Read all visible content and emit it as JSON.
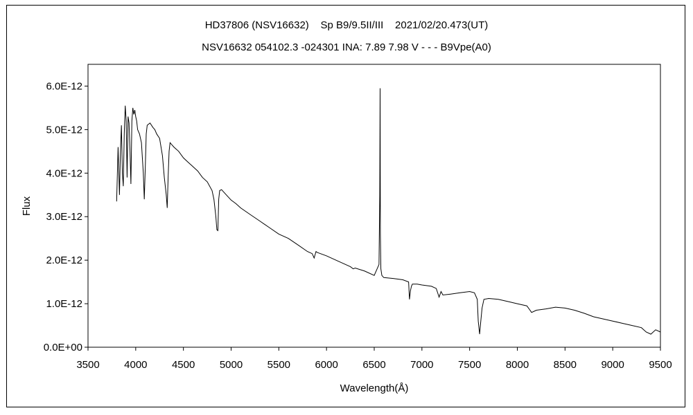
{
  "chart_data": {
    "type": "line",
    "title_line1": "HD37806 (NSV16632)    Sp B9/9.5II/III    2021/02/20.473(UT)",
    "title_line2": "NSV16632 054102.3 -024301 INA: 7.89 7.98 V - - - B9Vpe(A0)",
    "xlabel": "Wavelength(Å)",
    "ylabel": "Flux",
    "xlim": [
      3500,
      9500
    ],
    "ylim": [
      0,
      6.5e-12
    ],
    "xticks": [
      3500,
      4000,
      4500,
      5000,
      5500,
      6000,
      6500,
      7000,
      7500,
      8000,
      8500,
      9000,
      9500
    ],
    "xtick_labels": [
      "3500",
      "4000",
      "4500",
      "5000",
      "5500",
      "6000",
      "6500",
      "7000",
      "7500",
      "8000",
      "8500",
      "9000",
      "9500"
    ],
    "yticks": [
      0,
      1e-12,
      2e-12,
      3e-12,
      4e-12,
      5e-12,
      6e-12
    ],
    "ytick_labels": [
      "0.0E+00",
      "1.0E-12",
      "2.0E-12",
      "3.0E-12",
      "4.0E-12",
      "5.0E-12",
      "6.0E-12"
    ],
    "grid": false,
    "legend": "none",
    "series": [
      {
        "color": "#000000",
        "x": [
          3800,
          3815,
          3830,
          3840,
          3850,
          3860,
          3870,
          3880,
          3890,
          3900,
          3910,
          3920,
          3930,
          3940,
          3950,
          3960,
          3970,
          3980,
          3990,
          4000,
          4010,
          4020,
          4040,
          4060,
          4080,
          4090,
          4100,
          4110,
          4120,
          4150,
          4180,
          4200,
          4220,
          4250,
          4280,
          4300,
          4320,
          4330,
          4340,
          4350,
          4360,
          4380,
          4400,
          4450,
          4500,
          4550,
          4600,
          4650,
          4700,
          4750,
          4800,
          4820,
          4840,
          4850,
          4861,
          4870,
          4880,
          4900,
          4950,
          5000,
          5050,
          5100,
          5200,
          5300,
          5400,
          5500,
          5600,
          5700,
          5800,
          5850,
          5870,
          5890,
          5900,
          6000,
          6100,
          6200,
          6250,
          6280,
          6300,
          6400,
          6500,
          6550,
          6558,
          6562,
          6565,
          6570,
          6580,
          6600,
          6700,
          6800,
          6860,
          6870,
          6880,
          6890,
          6900,
          6950,
          7000,
          7100,
          7150,
          7180,
          7200,
          7220,
          7300,
          7400,
          7500,
          7550,
          7580,
          7590,
          7605,
          7615,
          7630,
          7650,
          7700,
          7800,
          7900,
          8000,
          8100,
          8150,
          8200,
          8300,
          8400,
          8500,
          8600,
          8700,
          8800,
          8900,
          9000,
          9100,
          9200,
          9300,
          9350,
          9400,
          9450,
          9500
        ],
        "y": [
          3.35e-12,
          4.6e-12,
          3.5e-12,
          4.5e-12,
          5.1e-12,
          4e-12,
          3.7e-12,
          4.9e-12,
          5.55e-12,
          5.2e-12,
          3.9e-12,
          5.3e-12,
          5.15e-12,
          4.5e-12,
          3.75e-12,
          5.2e-12,
          5.5e-12,
          5.35e-12,
          5.45e-12,
          5.3e-12,
          5.2e-12,
          5e-12,
          4.9e-12,
          4.7e-12,
          4e-12,
          3.4e-12,
          4.1e-12,
          4.9e-12,
          5.1e-12,
          5.15e-12,
          5.05e-12,
          5e-12,
          4.9e-12,
          4.8e-12,
          4.4e-12,
          3.9e-12,
          3.5e-12,
          3.2e-12,
          3.9e-12,
          4.5e-12,
          4.7e-12,
          4.65e-12,
          4.6e-12,
          4.5e-12,
          4.35e-12,
          4.25e-12,
          4.15e-12,
          4.05e-12,
          3.9e-12,
          3.8e-12,
          3.6e-12,
          3.4e-12,
          3e-12,
          2.7e-12,
          2.68e-12,
          3.4e-12,
          3.6e-12,
          3.62e-12,
          3.5e-12,
          3.38e-12,
          3.3e-12,
          3.2e-12,
          3.05e-12,
          2.9e-12,
          2.75e-12,
          2.6e-12,
          2.5e-12,
          2.35e-12,
          2.2e-12,
          2.15e-12,
          2.05e-12,
          2.2e-12,
          2.18e-12,
          2.1e-12,
          2e-12,
          1.9e-12,
          1.85e-12,
          1.8e-12,
          1.82e-12,
          1.75e-12,
          1.65e-12,
          1.9e-12,
          3.5e-12,
          5.95e-12,
          2.6e-12,
          1.8e-12,
          1.65e-12,
          1.6e-12,
          1.58e-12,
          1.55e-12,
          1.5e-12,
          1.1e-12,
          1.3e-12,
          1.4e-12,
          1.45e-12,
          1.45e-12,
          1.43e-12,
          1.4e-12,
          1.35e-12,
          1.15e-12,
          1.28e-12,
          1.2e-12,
          1.22e-12,
          1.25e-12,
          1.28e-12,
          1.25e-12,
          1.1e-12,
          6e-13,
          3e-13,
          5.5e-13,
          9e-13,
          1.1e-12,
          1.12e-12,
          1.1e-12,
          1.05e-12,
          1e-12,
          9.5e-13,
          8e-13,
          8.5e-13,
          8.8e-13,
          9.2e-13,
          9e-13,
          8.5e-13,
          7.8e-13,
          7e-13,
          6.5e-13,
          6e-13,
          5.5e-13,
          5e-13,
          4.5e-13,
          3.5e-13,
          3e-13,
          4e-13,
          3.5e-13
        ]
      }
    ]
  }
}
